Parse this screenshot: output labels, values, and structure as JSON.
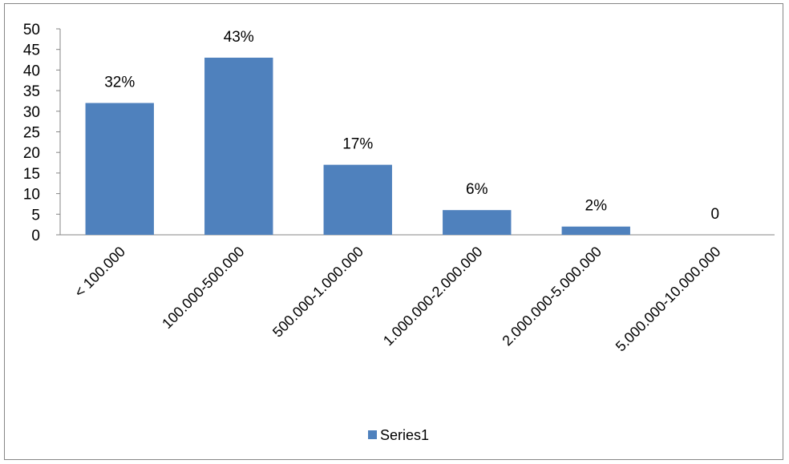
{
  "chart_data": {
    "type": "bar",
    "categories": [
      "< 100.000",
      "100.000-500.000",
      "500.000-1.000.000",
      "1.000.000-2.000.000",
      "2.000.000-5.000.000",
      "5.000.000-10.000.000"
    ],
    "series": [
      {
        "name": "Series1",
        "values": [
          32,
          43,
          17,
          6,
          2,
          0
        ],
        "color": "#4F81BD"
      }
    ],
    "data_labels": [
      "32%",
      "43%",
      "17%",
      "6%",
      "2%",
      "0"
    ],
    "yticks": [
      0,
      5,
      10,
      15,
      20,
      25,
      30,
      35,
      40,
      45,
      50
    ],
    "ylim": [
      0,
      50
    ],
    "title": "",
    "xlabel": "",
    "ylabel": "",
    "grid": false,
    "legend": "bottom"
  }
}
